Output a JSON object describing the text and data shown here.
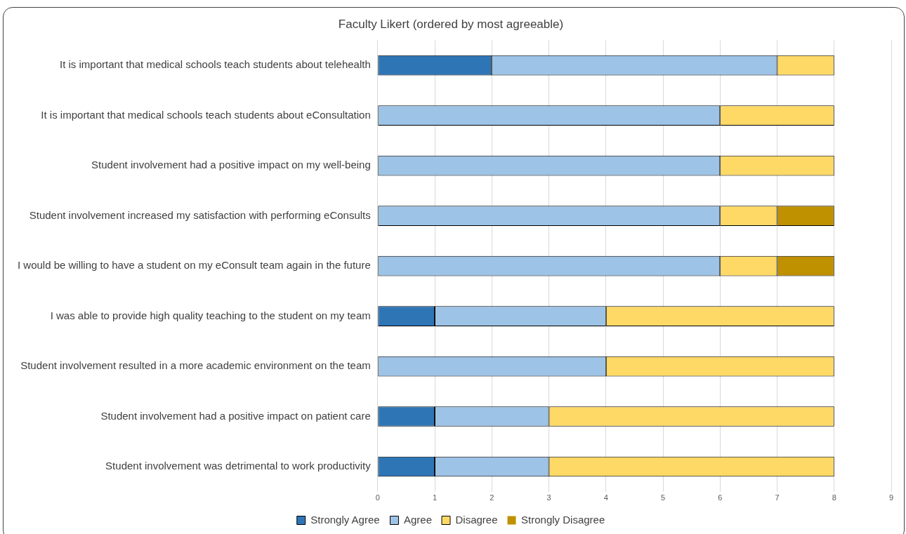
{
  "chart_data": {
    "type": "bar",
    "orientation": "horizontal",
    "stacked": true,
    "title": "Faculty Likert (ordered by most agreeable)",
    "categories": [
      "It is important that medical schools teach students about telehealth",
      "It is important that medical schools teach students about eConsultation",
      "Student involvement had a positive impact on my well-being",
      "Student involvement increased my satisfaction with performing eConsults",
      "I would be willing to have a student on my eConsult team again in the future",
      "I was able to provide high quality teaching to the student on my team",
      "Student involvement resulted in a more academic environment on the team",
      "Student involvement had a positive impact on patient care",
      "Student involvement was detrimental to work productivity"
    ],
    "series": [
      {
        "name": "Strongly Agree",
        "color": "#2e75b6",
        "values": [
          2,
          0,
          0,
          0,
          0,
          1,
          0,
          1,
          1
        ]
      },
      {
        "name": "Agree",
        "color": "#9dc3e6",
        "values": [
          5,
          6,
          6,
          6,
          6,
          3,
          4,
          2,
          2
        ]
      },
      {
        "name": "Disagree",
        "color": "#ffd966",
        "values": [
          1,
          2,
          2,
          1,
          1,
          4,
          4,
          5,
          5
        ]
      },
      {
        "name": "Strongly Disagree",
        "color": "#bf9000",
        "values": [
          0,
          0,
          0,
          1,
          1,
          0,
          0,
          0,
          0
        ]
      }
    ],
    "xlim": [
      0,
      9
    ],
    "xticks": [
      0,
      1,
      2,
      3,
      4,
      5,
      6,
      7,
      8,
      9
    ],
    "grid": "x",
    "legend": "bottom"
  }
}
